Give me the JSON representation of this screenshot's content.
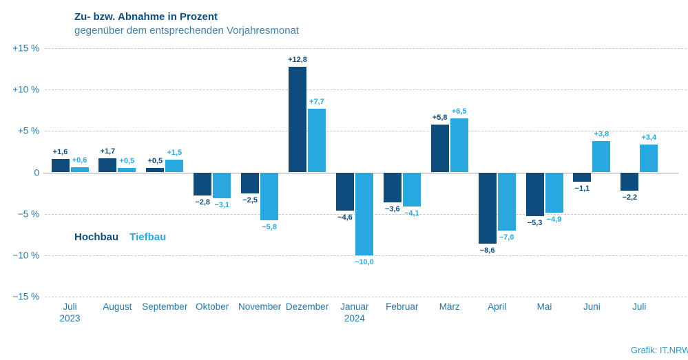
{
  "credit": "Grafik: IT.NRW",
  "colors": {
    "hochbau": "#0f4c7e",
    "tiefbau": "#29a8e0",
    "axis_color": "#2577ab",
    "title_color": "#0c4c80",
    "subtitle_color": "#3d82ad",
    "grid_color": "#c6c6c6",
    "zero_color": "#a6a6a6",
    "credit_color": "#2b96cf"
  },
  "chart_data": {
    "type": "bar",
    "title": "Zu- bzw. Abnahme in Prozent",
    "subtitle": "gegenüber dem entsprechenden Vorjahresmonat",
    "xlabel": "",
    "ylabel": "Prozent",
    "ylim": [
      -15,
      15
    ],
    "grid": "dashed horizontal gridlines",
    "legend_position": "middle-left",
    "value_label_format": "comma-decimal",
    "categories": [
      {
        "label": "Juli",
        "year": "2023"
      },
      {
        "label": "August"
      },
      {
        "label": "September"
      },
      {
        "label": "Oktober"
      },
      {
        "label": "November"
      },
      {
        "label": "Dezember"
      },
      {
        "label": "Januar",
        "year": "2024"
      },
      {
        "label": "Februar"
      },
      {
        "label": "März"
      },
      {
        "label": "April"
      },
      {
        "label": "Mai"
      },
      {
        "label": "Juni"
      },
      {
        "label": "Juli"
      }
    ],
    "series": [
      {
        "name": "Hochbau",
        "values": [
          1.6,
          1.7,
          0.5,
          -2.8,
          -2.5,
          12.8,
          -4.6,
          -3.6,
          5.8,
          -8.6,
          -5.3,
          -1.1,
          -2.2
        ],
        "labels": [
          "+1,6",
          "+1,7",
          "+0,5",
          "−2,8",
          "−2,5",
          "+12,8",
          "−4,6",
          "−3,6",
          "+5,8",
          "−8,6",
          "−5,3",
          "−1,1",
          "−2,2"
        ]
      },
      {
        "name": "Tiefbau",
        "values": [
          0.6,
          0.5,
          1.5,
          -3.1,
          -5.8,
          7.7,
          -10.0,
          -4.1,
          6.5,
          -7.0,
          -4.9,
          3.8,
          3.4
        ],
        "labels": [
          "+0,6",
          "+0,5",
          "+1,5",
          "−3,1",
          "−5,8",
          "+7,7",
          "−10,0",
          "−4,1",
          "+6,5",
          "−7,0",
          "−4,9",
          "+3,8",
          "+3,4"
        ]
      }
    ],
    "y_axis": {
      "ticks": [
        15,
        10,
        5,
        0,
        -5,
        -10,
        -15
      ],
      "tick_labels": [
        "+15 %",
        "+10 %",
        "+5 %",
        "0",
        "−5 %",
        "−10 %",
        "−15 %"
      ]
    }
  }
}
